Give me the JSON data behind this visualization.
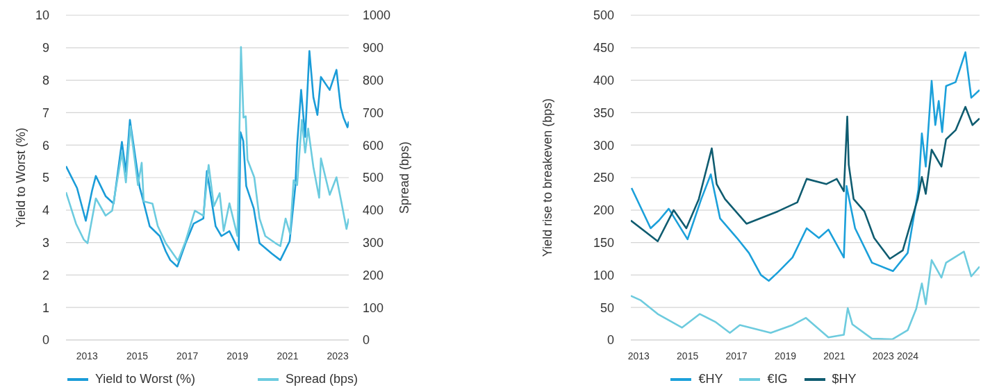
{
  "chart_data": [
    {
      "type": "line",
      "ylabel": "Yield to Worst (%)",
      "y2label": "Spread (bps)",
      "xlim": [
        2012.16,
        2023.44
      ],
      "xticks": [
        2013,
        2015,
        2017,
        2019,
        2021,
        2023
      ],
      "ylim": [
        0,
        10
      ],
      "yticks": [
        0,
        1,
        2,
        3,
        4,
        5,
        6,
        7,
        8,
        9,
        10
      ],
      "y2lim": [
        0,
        1000
      ],
      "y2ticks": [
        0,
        100,
        200,
        300,
        400,
        500,
        600,
        700,
        800,
        900,
        1000
      ],
      "grid": "y",
      "legend": "bottom",
      "series": [
        {
          "name": "Yield to Worst (%)",
          "color": "#1a9cd8",
          "x": [
            2012.16,
            2012.6,
            2012.95,
            2013.2,
            2013.35,
            2013.74,
            2014.06,
            2014.39,
            2014.55,
            2014.71,
            2015.1,
            2015.17,
            2015.5,
            2015.9,
            2016.14,
            2016.32,
            2016.6,
            2016.93,
            2017.25,
            2017.64,
            2017.78,
            2018.13,
            2018.36,
            2018.68,
            2019.05,
            2019.12,
            2019.23,
            2019.35,
            2019.65,
            2019.88,
            2020.37,
            2020.71,
            2021.08,
            2021.31,
            2021.38,
            2021.54,
            2021.7,
            2021.87,
            2022.03,
            2022.19,
            2022.33,
            2022.68,
            2022.95,
            2023.12,
            2023.23,
            2023.39,
            2023.44
          ],
          "values": [
            5.35,
            4.68,
            3.67,
            4.6,
            5.05,
            4.43,
            4.2,
            6.1,
            5.17,
            6.78,
            4.7,
            4.5,
            3.5,
            3.2,
            2.73,
            2.46,
            2.26,
            2.98,
            3.58,
            3.74,
            5.2,
            3.5,
            3.2,
            3.35,
            2.77,
            6.4,
            6.13,
            4.74,
            4.05,
            2.98,
            2.66,
            2.46,
            3.04,
            4.74,
            6.0,
            7.7,
            6.25,
            8.9,
            7.47,
            6.93,
            8.1,
            7.7,
            8.32,
            7.16,
            6.85,
            6.55,
            6.73
          ]
        },
        {
          "name": "Spread (bps)",
          "color": "#6ccbdf",
          "axis": "y2",
          "x": [
            2012.16,
            2012.56,
            2012.87,
            2013.02,
            2013.35,
            2013.74,
            2014.0,
            2014.39,
            2014.55,
            2014.73,
            2015.03,
            2015.18,
            2015.26,
            2015.61,
            2015.82,
            2016.14,
            2016.63,
            2016.93,
            2017.3,
            2017.64,
            2017.85,
            2018.06,
            2018.29,
            2018.45,
            2018.68,
            2019.0,
            2019.14,
            2019.24,
            2019.33,
            2019.4,
            2019.67,
            2019.88,
            2020.11,
            2020.52,
            2020.71,
            2020.92,
            2021.1,
            2021.24,
            2021.38,
            2021.57,
            2021.7,
            2021.82,
            2022.03,
            2022.26,
            2022.33,
            2022.68,
            2022.95,
            2023.14,
            2023.35,
            2023.44
          ],
          "values": [
            455,
            358,
            309,
            298,
            436,
            383,
            398,
            577,
            485,
            658,
            477,
            546,
            427,
            420,
            351,
            298,
            244,
            304,
            398,
            383,
            539,
            412,
            452,
            336,
            421,
            320,
            902,
            685,
            689,
            555,
            501,
            374,
            320,
            298,
            289,
            374,
            327,
            492,
            477,
            678,
            577,
            651,
            532,
            438,
            559,
            447,
            501,
            427,
            342,
            374
          ]
        }
      ]
    },
    {
      "type": "line",
      "ylabel": "Yield rise to breakeven (bps)",
      "xlim": [
        2012.68,
        2026.94
      ],
      "xticks": [
        2013,
        2015,
        2017,
        2019,
        2021,
        2023,
        2024
      ],
      "ylim": [
        0,
        500
      ],
      "yticks": [
        0,
        50,
        100,
        150,
        200,
        250,
        300,
        350,
        400,
        450,
        500
      ],
      "grid": "y",
      "legend": "bottom",
      "series": [
        {
          "name": "€HY",
          "color": "#1ba0da",
          "x": [
            2012.71,
            2013.49,
            2013.83,
            2014.23,
            2015.0,
            2015.56,
            2015.95,
            2016.33,
            2017.02,
            2017.51,
            2018.0,
            2018.32,
            2018.69,
            2019.29,
            2019.87,
            2020.37,
            2020.76,
            2021.39,
            2021.5,
            2021.85,
            2022.54,
            2023.4,
            2024.0,
            2024.44,
            2024.58,
            2024.74,
            2024.98,
            2025.13,
            2025.27,
            2025.41,
            2025.57,
            2025.96,
            2026.36,
            2026.6,
            2026.94
          ],
          "values": [
            234,
            172,
            184,
            202,
            155,
            217,
            255,
            187,
            157,
            134,
            100,
            91,
            104,
            127,
            172,
            157,
            170,
            127,
            237,
            172,
            119,
            106,
            134,
            232,
            318,
            267,
            399,
            331,
            368,
            320,
            391,
            397,
            443,
            373,
            385
          ]
        },
        {
          "name": "€IG",
          "color": "#6dcbde",
          "x": [
            2012.68,
            2013.09,
            2013.78,
            2014.77,
            2015.5,
            2016.13,
            2016.73,
            2017.14,
            2018.4,
            2019.29,
            2019.84,
            2020.76,
            2021.39,
            2021.55,
            2021.74,
            2022.54,
            2023.37,
            2024.0,
            2024.35,
            2024.58,
            2024.74,
            2024.98,
            2025.38,
            2025.57,
            2026.3,
            2026.6,
            2026.94
          ],
          "values": [
            68,
            61,
            40,
            19,
            40,
            28,
            11,
            23,
            11,
            23,
            34,
            4,
            8,
            49,
            24,
            2,
            1,
            15,
            48,
            87,
            55,
            123,
            96,
            119,
            136,
            98,
            113
          ]
        },
        {
          "name": "$HY",
          "color": "#0f5c70",
          "x": [
            2012.68,
            2013.78,
            2014.43,
            2014.95,
            2015.46,
            2015.99,
            2016.19,
            2016.53,
            2017.41,
            2018.69,
            2019.49,
            2019.87,
            2020.67,
            2021.1,
            2021.39,
            2021.53,
            2021.59,
            2021.79,
            2022.23,
            2022.63,
            2023.27,
            2023.8,
            2024.41,
            2024.58,
            2024.74,
            2024.98,
            2025.38,
            2025.57,
            2025.96,
            2026.36,
            2026.65,
            2026.94
          ],
          "values": [
            184,
            152,
            200,
            172,
            217,
            295,
            240,
            217,
            179,
            198,
            212,
            248,
            240,
            248,
            229,
            344,
            270,
            217,
            198,
            157,
            125,
            138,
            217,
            251,
            225,
            293,
            267,
            309,
            323,
            359,
            331,
            341
          ]
        }
      ]
    }
  ]
}
